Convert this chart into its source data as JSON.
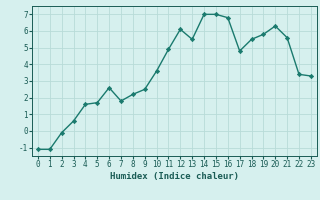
{
  "x": [
    0,
    1,
    2,
    3,
    4,
    5,
    6,
    7,
    8,
    9,
    10,
    11,
    12,
    13,
    14,
    15,
    16,
    17,
    18,
    19,
    20,
    21,
    22,
    23
  ],
  "y": [
    -1.1,
    -1.1,
    -0.1,
    0.6,
    1.6,
    1.7,
    2.6,
    1.8,
    2.2,
    2.5,
    3.6,
    4.9,
    6.1,
    5.5,
    7.0,
    7.0,
    6.8,
    4.8,
    5.5,
    5.8,
    6.3,
    5.6,
    3.4,
    3.3
  ],
  "line_color": "#1a7a6e",
  "marker": "D",
  "marker_size": 2.2,
  "bg_color": "#d6f0ee",
  "grid_color": "#b8dbd8",
  "xlabel": "Humidex (Indice chaleur)",
  "xlim": [
    -0.5,
    23.5
  ],
  "ylim": [
    -1.5,
    7.5
  ],
  "yticks": [
    -1,
    0,
    1,
    2,
    3,
    4,
    5,
    6,
    7
  ],
  "xticks": [
    0,
    1,
    2,
    3,
    4,
    5,
    6,
    7,
    8,
    9,
    10,
    11,
    12,
    13,
    14,
    15,
    16,
    17,
    18,
    19,
    20,
    21,
    22,
    23
  ],
  "axis_color": "#1a5c55",
  "font_size_xlabel": 6.5,
  "font_size_ticks": 5.5,
  "line_width": 1.0
}
